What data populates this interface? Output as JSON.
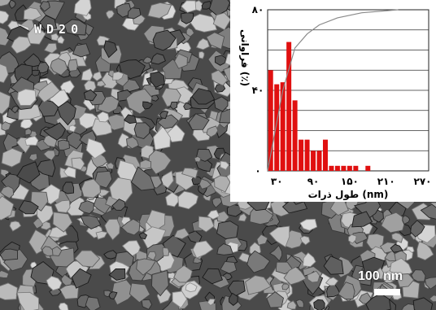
{
  "micrograph": {
    "label": "WD20",
    "scale_bar_text": "100 nm"
  },
  "chart_data": {
    "type": "bar",
    "xlabel": "طول ذرات (nm)",
    "ylabel": "فراوانی (٪)",
    "x_tick_labels": [
      "۳۰",
      "۹۰",
      "۱۵۰",
      "۲۱۰",
      "۲۷۰"
    ],
    "x_ticks": [
      30,
      90,
      150,
      210,
      270
    ],
    "y_tick_labels": [
      "۰",
      "۴۰",
      "۸۰"
    ],
    "y_ticks": [
      0,
      40,
      80
    ],
    "xlim": [
      15,
      280
    ],
    "ylim": [
      0,
      16
    ],
    "bar_color": "#e01010",
    "bars": [
      {
        "x": 20,
        "value": 10.0
      },
      {
        "x": 30,
        "value": 8.6
      },
      {
        "x": 40,
        "value": 8.8
      },
      {
        "x": 50,
        "value": 12.8
      },
      {
        "x": 60,
        "value": 7.0
      },
      {
        "x": 70,
        "value": 3.1
      },
      {
        "x": 80,
        "value": 3.1
      },
      {
        "x": 90,
        "value": 2.0
      },
      {
        "x": 100,
        "value": 2.0
      },
      {
        "x": 110,
        "value": 3.1
      },
      {
        "x": 120,
        "value": 0.5
      },
      {
        "x": 130,
        "value": 0.5
      },
      {
        "x": 140,
        "value": 0.5
      },
      {
        "x": 150,
        "value": 0.5
      },
      {
        "x": 160,
        "value": 0.5
      },
      {
        "x": 180,
        "value": 0.5
      }
    ],
    "cumulative_line": {
      "color": "#8a8a8a",
      "points": [
        [
          15,
          0
        ],
        [
          40,
          8
        ],
        [
          60,
          12.2
        ],
        [
          80,
          13.6
        ],
        [
          100,
          14.5
        ],
        [
          130,
          15.2
        ],
        [
          170,
          15.7
        ],
        [
          230,
          16
        ]
      ]
    },
    "grid": true
  }
}
